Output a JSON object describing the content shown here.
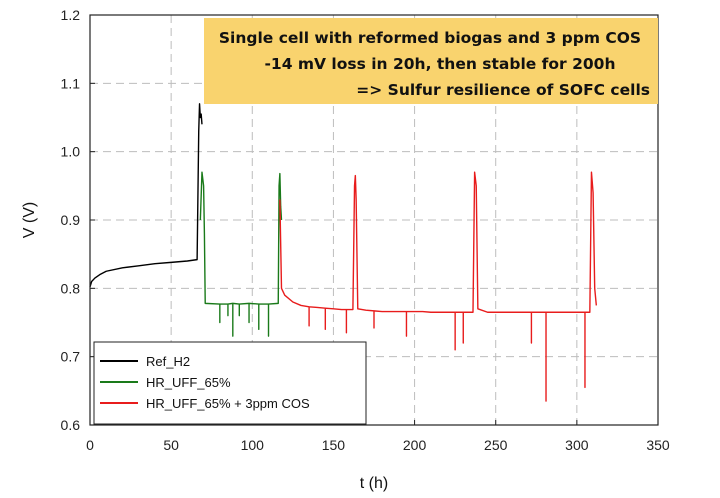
{
  "chart_data": {
    "type": "line",
    "title": "",
    "xlabel": "t (h)",
    "ylabel": "V (V)",
    "xlim": [
      0,
      350
    ],
    "ylim": [
      0.6,
      1.2
    ],
    "x_ticks": [
      "0",
      "50",
      "100",
      "150",
      "200",
      "250",
      "300",
      "350"
    ],
    "y_ticks": [
      "0.6",
      "0.7",
      "0.8",
      "0.9",
      "1.0",
      "1.1",
      "1.2"
    ],
    "grid": true,
    "legend_position": "bottom-left",
    "annotation": {
      "lines": [
        "Single cell with reformed biogas and 3 ppm COS",
        "-14 mV loss in 20h, then stable for 200h",
        "=> Sulfur resilience of SOFC cells"
      ],
      "background": "#f9d36e"
    },
    "series": [
      {
        "name": "Ref_H2",
        "color": "#000000",
        "points": [
          [
            0,
            0.802
          ],
          [
            1,
            0.81
          ],
          [
            3,
            0.815
          ],
          [
            6,
            0.82
          ],
          [
            10,
            0.825
          ],
          [
            20,
            0.83
          ],
          [
            30,
            0.833
          ],
          [
            40,
            0.836
          ],
          [
            50,
            0.838
          ],
          [
            60,
            0.84
          ],
          [
            66,
            0.842
          ],
          [
            67,
            1.03
          ],
          [
            67.5,
            1.07
          ],
          [
            68,
            1.05
          ],
          [
            68.5,
            1.055
          ],
          [
            69,
            1.04
          ]
        ]
      },
      {
        "name": "HR_UFF_65%",
        "color": "#1a7a1a",
        "points": [
          [
            68,
            0.9
          ],
          [
            69,
            0.97
          ],
          [
            70,
            0.95
          ],
          [
            70.5,
            0.88
          ],
          [
            71,
            0.778
          ],
          [
            80,
            0.777
          ],
          [
            80,
            0.75
          ],
          [
            80,
            0.777
          ],
          [
            85,
            0.777
          ],
          [
            85,
            0.76
          ],
          [
            85,
            0.777
          ],
          [
            88,
            0.778
          ],
          [
            88,
            0.73
          ],
          [
            88,
            0.778
          ],
          [
            92,
            0.777
          ],
          [
            92,
            0.76
          ],
          [
            92,
            0.777
          ],
          [
            98,
            0.778
          ],
          [
            98,
            0.75
          ],
          [
            98,
            0.778
          ],
          [
            104,
            0.777
          ],
          [
            104,
            0.74
          ],
          [
            104,
            0.777
          ],
          [
            110,
            0.777
          ],
          [
            110,
            0.73
          ],
          [
            110,
            0.777
          ],
          [
            116,
            0.778
          ],
          [
            116.5,
            0.95
          ],
          [
            117,
            0.968
          ],
          [
            117.5,
            0.92
          ],
          [
            118,
            0.9
          ]
        ]
      },
      {
        "name": "HR_UFF_65% + 3ppm COS",
        "color": "#e81c1c",
        "points": [
          [
            117,
            0.93
          ],
          [
            118,
            0.8
          ],
          [
            120,
            0.79
          ],
          [
            125,
            0.78
          ],
          [
            130,
            0.775
          ],
          [
            135,
            0.773
          ],
          [
            135,
            0.745
          ],
          [
            135,
            0.773
          ],
          [
            140,
            0.772
          ],
          [
            145,
            0.771
          ],
          [
            145,
            0.74
          ],
          [
            145,
            0.771
          ],
          [
            150,
            0.77
          ],
          [
            155,
            0.769
          ],
          [
            158,
            0.769
          ],
          [
            158,
            0.735
          ],
          [
            158,
            0.769
          ],
          [
            162,
            0.769
          ],
          [
            163,
            0.95
          ],
          [
            163.5,
            0.965
          ],
          [
            164,
            0.93
          ],
          [
            165,
            0.77
          ],
          [
            170,
            0.768
          ],
          [
            175,
            0.767
          ],
          [
            175,
            0.742
          ],
          [
            175,
            0.767
          ],
          [
            180,
            0.766
          ],
          [
            190,
            0.766
          ],
          [
            195,
            0.766
          ],
          [
            195,
            0.73
          ],
          [
            195,
            0.766
          ],
          [
            205,
            0.766
          ],
          [
            210,
            0.765
          ],
          [
            220,
            0.765
          ],
          [
            225,
            0.765
          ],
          [
            225,
            0.71
          ],
          [
            225,
            0.765
          ],
          [
            230,
            0.765
          ],
          [
            230,
            0.72
          ],
          [
            230,
            0.765
          ],
          [
            236,
            0.765
          ],
          [
            237,
            0.97
          ],
          [
            238,
            0.95
          ],
          [
            239,
            0.77
          ],
          [
            245,
            0.765
          ],
          [
            255,
            0.765
          ],
          [
            265,
            0.765
          ],
          [
            272,
            0.765
          ],
          [
            272,
            0.72
          ],
          [
            272,
            0.765
          ],
          [
            281,
            0.765
          ],
          [
            281,
            0.635
          ],
          [
            281,
            0.765
          ],
          [
            290,
            0.765
          ],
          [
            300,
            0.765
          ],
          [
            305,
            0.765
          ],
          [
            305,
            0.655
          ],
          [
            305,
            0.765
          ],
          [
            308,
            0.765
          ],
          [
            309,
            0.97
          ],
          [
            310,
            0.94
          ],
          [
            311,
            0.8
          ],
          [
            312,
            0.775
          ]
        ]
      }
    ]
  }
}
